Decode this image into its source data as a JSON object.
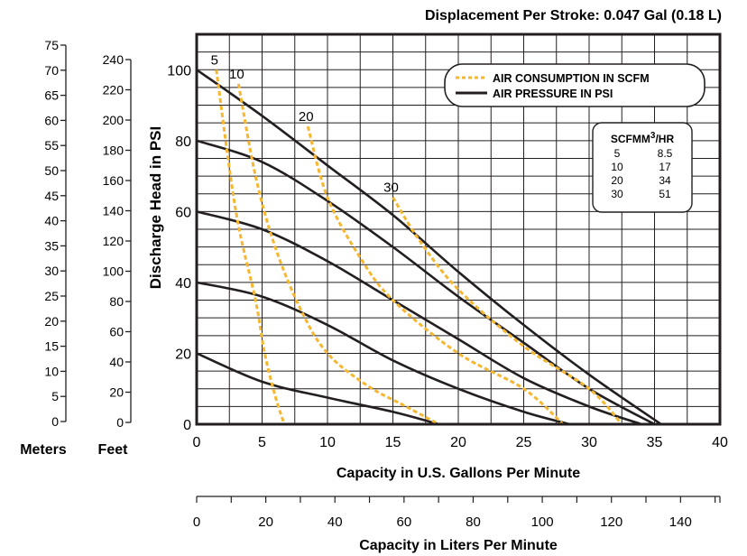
{
  "chart_data": {
    "type": "line",
    "title": "Displacement Per Stroke: 0.047 Gal (0.18 L)",
    "xlabel": "Capacity in U.S. Gallons Per Minute",
    "xlabel2": "Capacity in Liters Per Minute",
    "ylabel": "Discharge Head in PSI",
    "xlim": [
      0,
      40
    ],
    "ylim": [
      0,
      110
    ],
    "x_ticks": [
      "0",
      "5",
      "10",
      "15",
      "20",
      "25",
      "30",
      "35",
      "40"
    ],
    "y_ticks": [
      "0",
      "20",
      "40",
      "60",
      "80",
      "100"
    ],
    "liters_ticks": [
      "0",
      "20",
      "40",
      "60",
      "80",
      "100",
      "120",
      "140"
    ],
    "feet_label": "Feet",
    "feet_ticks": [
      "0",
      "20",
      "40",
      "60",
      "80",
      "100",
      "120",
      "140",
      "160",
      "180",
      "200",
      "220",
      "240"
    ],
    "meters_label": "Meters",
    "meters_ticks": [
      "0",
      "5",
      "10",
      "15",
      "20",
      "25",
      "30",
      "35",
      "40",
      "45",
      "50",
      "55",
      "60",
      "65",
      "70",
      "75"
    ],
    "legend": {
      "placement": "top-right",
      "items": [
        {
          "label": "AIR CONSUMPTION IN SCFM",
          "style": "dashed",
          "color": "#f5b731"
        },
        {
          "label": "AIR PRESSURE IN PSI",
          "style": "solid",
          "color": "#231f20"
        }
      ]
    },
    "scfm_table": {
      "header": [
        "SCFM",
        "M",
        "3",
        "/HR"
      ],
      "rows": [
        [
          "5",
          "8.5"
        ],
        [
          "10",
          "17"
        ],
        [
          "20",
          "34"
        ],
        [
          "30",
          "51"
        ]
      ]
    },
    "pressure_series": [
      {
        "psi": 100,
        "points": [
          [
            0,
            100
          ],
          [
            5,
            87
          ],
          [
            10,
            73
          ],
          [
            15,
            59
          ],
          [
            20,
            43
          ],
          [
            25,
            28
          ],
          [
            30,
            14
          ],
          [
            35.5,
            0
          ]
        ]
      },
      {
        "psi": 80,
        "points": [
          [
            0,
            80
          ],
          [
            5,
            74
          ],
          [
            10,
            63
          ],
          [
            15,
            50
          ],
          [
            20,
            36
          ],
          [
            25,
            23
          ],
          [
            30,
            10
          ],
          [
            35,
            0
          ]
        ]
      },
      {
        "psi": 60,
        "points": [
          [
            0,
            60
          ],
          [
            5,
            55
          ],
          [
            10,
            46
          ],
          [
            15,
            35
          ],
          [
            20,
            24
          ],
          [
            25,
            13
          ],
          [
            30,
            5
          ],
          [
            34,
            0
          ]
        ]
      },
      {
        "psi": 40,
        "points": [
          [
            0,
            40
          ],
          [
            5,
            36
          ],
          [
            10,
            28
          ],
          [
            15,
            18
          ],
          [
            20,
            10
          ],
          [
            25,
            3.5
          ],
          [
            28.5,
            0
          ]
        ]
      },
      {
        "psi": 20,
        "points": [
          [
            0,
            20
          ],
          [
            5,
            12
          ],
          [
            10,
            7.5
          ],
          [
            15,
            3.5
          ],
          [
            18.5,
            0
          ]
        ]
      }
    ],
    "air_series": [
      {
        "label": "5",
        "points": [
          [
            1.5,
            100
          ],
          [
            3,
            60
          ],
          [
            4.5,
            35
          ],
          [
            5.2,
            20
          ],
          [
            6,
            8
          ],
          [
            6.7,
            0
          ]
        ]
      },
      {
        "label": "10",
        "points": [
          [
            3.2,
            96
          ],
          [
            4.5,
            70
          ],
          [
            6,
            50
          ],
          [
            8,
            32
          ],
          [
            10,
            20
          ],
          [
            13,
            11
          ],
          [
            16,
            5
          ],
          [
            18.5,
            0
          ]
        ]
      },
      {
        "label": "20",
        "points": [
          [
            8.5,
            84
          ],
          [
            10,
            64
          ],
          [
            12.5,
            47
          ],
          [
            15,
            35
          ],
          [
            20,
            20
          ],
          [
            25,
            10
          ],
          [
            28,
            0
          ]
        ]
      },
      {
        "label": "30",
        "points": [
          [
            15,
            64
          ],
          [
            17,
            52
          ],
          [
            20,
            38
          ],
          [
            25,
            22
          ],
          [
            30,
            10
          ],
          [
            32.5,
            0
          ]
        ]
      }
    ]
  }
}
